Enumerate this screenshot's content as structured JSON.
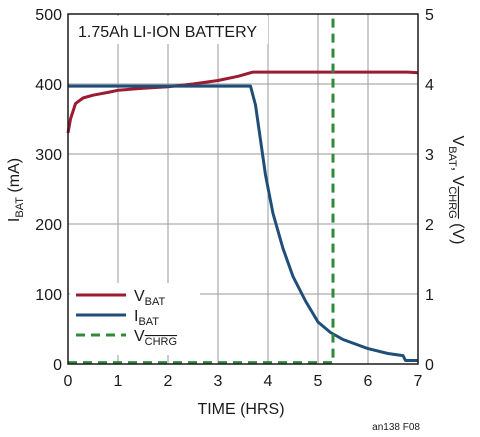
{
  "chart_data": {
    "type": "line",
    "annotation": "1.75Ah LI-ION BATTERY",
    "figure_id": "an138 F08",
    "xlabel": "TIME (HRS)",
    "ylabel_left": {
      "main": "I",
      "sub": "BAT",
      "rest": " (mA)"
    },
    "ylabel_right": {
      "main1": "V",
      "sub1": "BAT",
      "sep": ", V",
      "sub2": "CHRG",
      "rest": " (V)"
    },
    "xlim": [
      0,
      7
    ],
    "ylim_left": [
      0,
      500
    ],
    "ylim_right": [
      0,
      5
    ],
    "x_ticks": [
      "0",
      "1",
      "2",
      "3",
      "4",
      "5",
      "6",
      "7"
    ],
    "y_ticks_left": [
      "0",
      "100",
      "200",
      "300",
      "400",
      "500"
    ],
    "y_ticks_right": [
      "0",
      "1",
      "2",
      "3",
      "4",
      "5"
    ],
    "grid": true,
    "legend_position": "bottom-left",
    "series": [
      {
        "name": "VBAT",
        "label_main": "V",
        "label_sub": "BAT",
        "axis": "right",
        "color": "#9b1b30",
        "style": "solid",
        "x": [
          0,
          0.05,
          0.15,
          0.3,
          0.5,
          0.8,
          1.0,
          1.5,
          2.0,
          2.5,
          3.0,
          3.4,
          3.7,
          4.0,
          5.0,
          6.0,
          6.8,
          7.0
        ],
        "y": [
          3.3,
          3.5,
          3.72,
          3.8,
          3.84,
          3.88,
          3.91,
          3.94,
          3.96,
          4.0,
          4.05,
          4.11,
          4.17,
          4.17,
          4.17,
          4.17,
          4.17,
          4.16
        ]
      },
      {
        "name": "IBAT",
        "label_main": "I",
        "label_sub": "BAT",
        "axis": "left",
        "color": "#1f4e79",
        "style": "solid",
        "x": [
          0,
          1,
          2,
          3,
          3.65,
          3.75,
          3.85,
          3.95,
          4.1,
          4.3,
          4.5,
          4.75,
          5.0,
          5.25,
          5.5,
          6.0,
          6.4,
          6.7,
          6.75,
          7.0
        ],
        "y": [
          397,
          397,
          397,
          397,
          397,
          370,
          320,
          270,
          215,
          165,
          125,
          90,
          60,
          45,
          35,
          22,
          15,
          12,
          5,
          5
        ]
      },
      {
        "name": "VCHRG",
        "label_main": "V",
        "label_sub": "CHRG",
        "axis": "right",
        "color": "#2e8b3a",
        "style": "dashed",
        "x": [
          0,
          5.3,
          5.3,
          5.3
        ],
        "y": [
          0.02,
          0.02,
          0.02,
          5.0
        ]
      }
    ]
  }
}
